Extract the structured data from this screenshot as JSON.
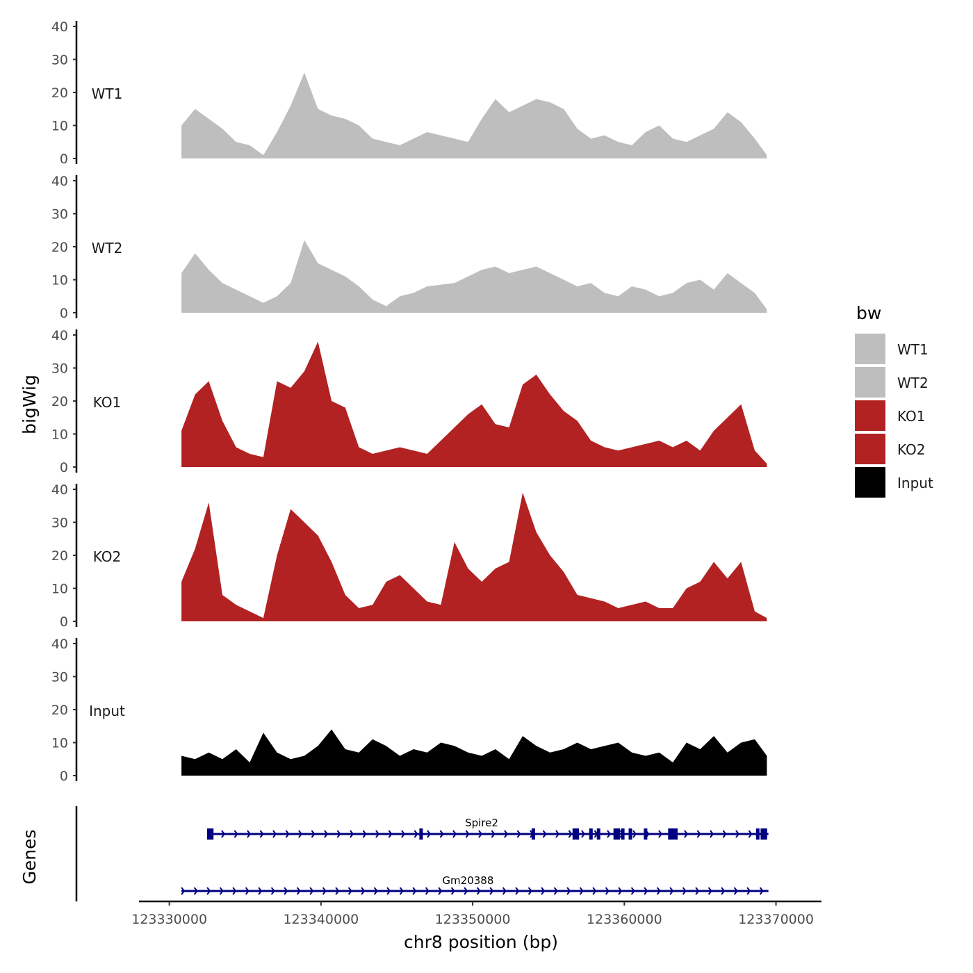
{
  "chart_data": {
    "type": "area",
    "ylabel": "bigWig",
    "genes_label": "Genes",
    "xlabel": "chr8 position (bp)",
    "xlim": [
      123328000,
      123373000
    ],
    "ylim": [
      0,
      40
    ],
    "x_ticks": [
      123330000,
      123340000,
      123350000,
      123360000,
      123370000
    ],
    "x_tick_labels": [
      "123330000",
      "123340000",
      "123350000",
      "123360000",
      "123370000"
    ],
    "y_ticks": [
      0,
      10,
      20,
      30,
      40
    ],
    "y_tick_labels": [
      "0",
      "10",
      "20",
      "30",
      "40"
    ],
    "legend": {
      "title": "bw",
      "entries": [
        {
          "label": "WT1",
          "color": "#bebebe"
        },
        {
          "label": "WT2",
          "color": "#bebebe"
        },
        {
          "label": "KO1",
          "color": "#b22222"
        },
        {
          "label": "KO2",
          "color": "#b22222"
        },
        {
          "label": "Input",
          "color": "#000000"
        }
      ]
    },
    "tracks": [
      {
        "name": "WT1",
        "color": "#bebebe",
        "x": [
          123330800,
          123331700,
          123332600,
          123333500,
          123334400,
          123335300,
          123336200,
          123337100,
          123338000,
          123338900,
          123339800,
          123340700,
          123341600,
          123342500,
          123343400,
          123344300,
          123345200,
          123346100,
          123347000,
          123347900,
          123348800,
          123349700,
          123350600,
          123351500,
          123352400,
          123353300,
          123354200,
          123355100,
          123356000,
          123356900,
          123357800,
          123358700,
          123359600,
          123360500,
          123361400,
          123362300,
          123363200,
          123364100,
          123365000,
          123365900,
          123366800,
          123367700,
          123368600,
          123369400
        ],
        "values": [
          10,
          15,
          12,
          9,
          5,
          4,
          1,
          8,
          16,
          26,
          15,
          13,
          12,
          10,
          6,
          5,
          4,
          6,
          8,
          7,
          6,
          5,
          12,
          18,
          14,
          16,
          18,
          17,
          15,
          9,
          6,
          7,
          5,
          4,
          8,
          10,
          6,
          5,
          7,
          9,
          14,
          11,
          6,
          1
        ]
      },
      {
        "name": "WT2",
        "color": "#bebebe",
        "x": [
          123330800,
          123331700,
          123332600,
          123333500,
          123334400,
          123335300,
          123336200,
          123337100,
          123338000,
          123338900,
          123339800,
          123340700,
          123341600,
          123342500,
          123343400,
          123344300,
          123345200,
          123346100,
          123347000,
          123348800,
          123349700,
          123350600,
          123351500,
          123352400,
          123353300,
          123354200,
          123355100,
          123356000,
          123356900,
          123357800,
          123358700,
          123359600,
          123360500,
          123361400,
          123362300,
          123363200,
          123364100,
          123365000,
          123365900,
          123366800,
          123367700,
          123368600,
          123369400
        ],
        "values": [
          12,
          18,
          13,
          9,
          7,
          5,
          3,
          5,
          9,
          22,
          15,
          13,
          11,
          8,
          4,
          2,
          5,
          6,
          8,
          9,
          11,
          13,
          14,
          12,
          13,
          14,
          12,
          10,
          8,
          9,
          6,
          5,
          8,
          7,
          5,
          6,
          9,
          10,
          7,
          12,
          9,
          6,
          1
        ]
      },
      {
        "name": "KO1",
        "color": "#b22222",
        "x": [
          123330800,
          123331700,
          123332600,
          123333500,
          123334400,
          123335300,
          123336200,
          123337100,
          123338000,
          123338900,
          123339800,
          123340700,
          123341600,
          123342500,
          123343400,
          123344300,
          123345200,
          123346100,
          123347000,
          123347900,
          123348800,
          123349700,
          123350600,
          123351500,
          123352400,
          123353300,
          123354200,
          123355100,
          123356000,
          123356900,
          123357800,
          123358700,
          123359600,
          123360500,
          123361400,
          123362300,
          123363200,
          123364100,
          123365000,
          123365900,
          123366800,
          123367700,
          123368600,
          123369400
        ],
        "values": [
          11,
          22,
          26,
          14,
          6,
          4,
          3,
          26,
          24,
          29,
          38,
          20,
          18,
          6,
          4,
          5,
          6,
          5,
          4,
          8,
          12,
          16,
          19,
          13,
          12,
          25,
          28,
          22,
          17,
          14,
          8,
          6,
          5,
          6,
          7,
          8,
          6,
          8,
          5,
          11,
          15,
          19,
          5,
          1
        ]
      },
      {
        "name": "KO2",
        "color": "#b22222",
        "x": [
          123330800,
          123331700,
          123332600,
          123333500,
          123334400,
          123335300,
          123336200,
          123337100,
          123338000,
          123338900,
          123339800,
          123340700,
          123341600,
          123342500,
          123343400,
          123344300,
          123345200,
          123346100,
          123347000,
          123347900,
          123348800,
          123349700,
          123350600,
          123351500,
          123352400,
          123353300,
          123354200,
          123355100,
          123356000,
          123356900,
          123357800,
          123358700,
          123359600,
          123360500,
          123361400,
          123362300,
          123363200,
          123364100,
          123365000,
          123365900,
          123366800,
          123367700,
          123368600,
          123369400
        ],
        "values": [
          12,
          22,
          36,
          8,
          5,
          3,
          1,
          20,
          34,
          30,
          26,
          18,
          8,
          4,
          5,
          12,
          14,
          10,
          6,
          5,
          24,
          16,
          12,
          16,
          18,
          39,
          27,
          20,
          15,
          8,
          7,
          6,
          4,
          5,
          6,
          4,
          4,
          10,
          12,
          18,
          13,
          18,
          3,
          1
        ]
      },
      {
        "name": "Input",
        "color": "#000000",
        "x": [
          123330800,
          123331700,
          123332600,
          123333500,
          123334400,
          123335300,
          123336200,
          123337100,
          123338000,
          123338900,
          123339800,
          123340700,
          123341600,
          123342500,
          123343400,
          123344300,
          123345200,
          123346100,
          123347000,
          123347900,
          123348800,
          123349700,
          123350600,
          123351500,
          123352400,
          123353300,
          123354200,
          123355100,
          123356000,
          123356900,
          123357800,
          123358700,
          123359600,
          123360500,
          123361400,
          123362300,
          123363200,
          123364100,
          123365000,
          123365900,
          123366800,
          123367700,
          123368600,
          123369400
        ],
        "values": [
          6,
          5,
          7,
          5,
          8,
          4,
          13,
          7,
          5,
          6,
          9,
          14,
          8,
          7,
          11,
          9,
          6,
          8,
          7,
          10,
          9,
          7,
          6,
          8,
          5,
          12,
          9,
          7,
          8,
          10,
          8,
          9,
          10,
          7,
          6,
          7,
          4,
          10,
          8,
          12,
          7,
          10,
          11,
          6
        ]
      }
    ],
    "genes": [
      {
        "name": "Spire2",
        "start": 123332600,
        "end": 123369500,
        "strand": "+",
        "color": "#000080",
        "exons": [
          123332600,
          123332800,
          123346600,
          123354000,
          123356700,
          123356900,
          123357800,
          123358300,
          123359400,
          123359600,
          123359900,
          123360400,
          123361400,
          123363000,
          123363200,
          123363400,
          123368800,
          123369100,
          123369300
        ]
      },
      {
        "name": "Gm20388",
        "start": 123330800,
        "end": 123369500,
        "strand": "+",
        "color": "#000080",
        "exons": []
      }
    ]
  }
}
